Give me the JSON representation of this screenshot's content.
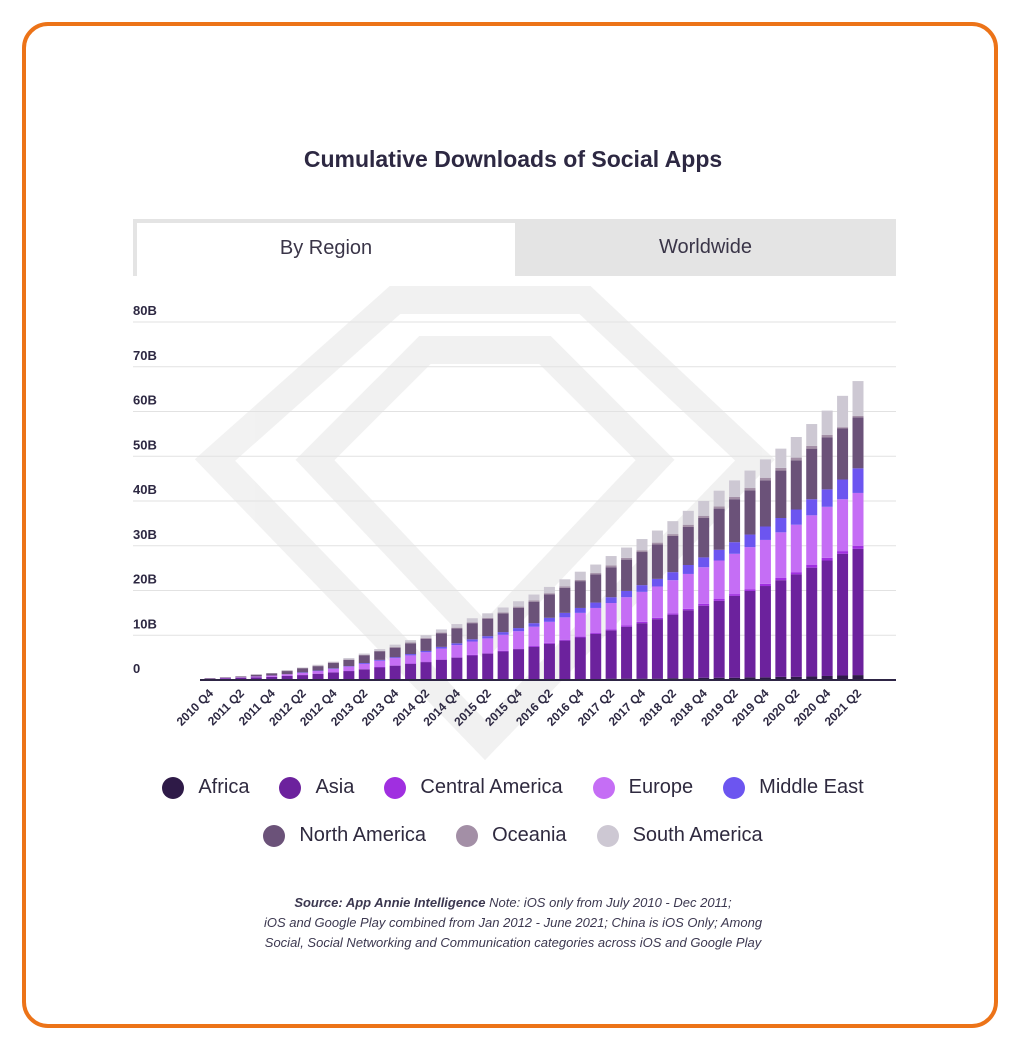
{
  "page": {
    "title": "Cumulative Downloads of Social Apps",
    "tabs": [
      {
        "label": "By Region",
        "active": true
      },
      {
        "label": "Worldwide",
        "active": false
      }
    ],
    "source_label": "Source: App Annie Intelligence",
    "source_note_lines": [
      "Note: iOS only from July 2010 - Dec 2011;",
      "iOS and Google Play combined from Jan 2012 - June 2021; China is iOS Only; Among",
      "Social, Social Networking and Communication categories across iOS and Google Play"
    ]
  },
  "chart_data": {
    "type": "bar",
    "stacked": true,
    "title": "Cumulative Downloads of Social Apps",
    "xlabel": "",
    "ylabel": "",
    "ylim": [
      0,
      80
    ],
    "yticks": [
      0,
      10,
      20,
      30,
      40,
      50,
      60,
      70,
      80
    ],
    "ytick_labels": [
      "0",
      "10B",
      "20B",
      "30B",
      "40B",
      "50B",
      "60B",
      "70B",
      "80B"
    ],
    "categories": [
      "2010 Q4",
      "2011 Q1",
      "2011 Q2",
      "2011 Q3",
      "2011 Q4",
      "2012 Q1",
      "2012 Q2",
      "2012 Q3",
      "2012 Q4",
      "2013 Q1",
      "2013 Q2",
      "2013 Q3",
      "2013 Q4",
      "2014 Q1",
      "2014 Q2",
      "2014 Q3",
      "2014 Q4",
      "2015 Q1",
      "2015 Q2",
      "2015 Q3",
      "2015 Q4",
      "2016 Q1",
      "2016 Q2",
      "2016 Q3",
      "2016 Q4",
      "2017 Q1",
      "2017 Q2",
      "2017 Q3",
      "2017 Q4",
      "2018 Q1",
      "2018 Q2",
      "2018 Q3",
      "2018 Q4",
      "2019 Q1",
      "2019 Q2",
      "2019 Q3",
      "2019 Q4",
      "2020 Q1",
      "2020 Q2",
      "2020 Q3",
      "2020 Q4",
      "2021 Q1",
      "2021 Q2"
    ],
    "xtick_labels": [
      "2010 Q4",
      "2011 Q2",
      "2011 Q4",
      "2012 Q2",
      "2012 Q4",
      "2013 Q2",
      "2013 Q4",
      "2014 Q2",
      "2014 Q4",
      "2015 Q2",
      "2015 Q4",
      "2016 Q2",
      "2016 Q4",
      "2017 Q2",
      "2017 Q4",
      "2018 Q2",
      "2018 Q4",
      "2019 Q2",
      "2019 Q4",
      "2020 Q2",
      "2020 Q4",
      "2021 Q2"
    ],
    "series": [
      {
        "name": "Africa",
        "color": "#2e1a47",
        "values": [
          0,
          0,
          0,
          0,
          0,
          0,
          0,
          0,
          0,
          0,
          0,
          0,
          0,
          0,
          0,
          0,
          0.1,
          0.1,
          0.1,
          0.1,
          0.1,
          0.1,
          0.2,
          0.2,
          0.2,
          0.2,
          0.3,
          0.3,
          0.3,
          0.3,
          0.4,
          0.4,
          0.5,
          0.5,
          0.5,
          0.6,
          0.6,
          0.7,
          0.7,
          0.8,
          0.9,
          1.0,
          1.1
        ]
      },
      {
        "name": "Asia",
        "color": "#6c229d",
        "values": [
          0.3,
          0.4,
          0.5,
          0.6,
          0.7,
          0.9,
          1.1,
          1.4,
          1.7,
          2.0,
          2.4,
          2.8,
          3.2,
          3.6,
          4.0,
          4.5,
          4.9,
          5.4,
          5.8,
          6.3,
          6.8,
          7.3,
          7.9,
          8.6,
          9.3,
          10.1,
          10.8,
          11.6,
          12.4,
          13.3,
          14.2,
          15.2,
          16.1,
          17.2,
          18.3,
          19.3,
          20.4,
          21.6,
          22.9,
          24.3,
          25.8,
          27.2,
          28.2
        ]
      },
      {
        "name": "Central America",
        "color": "#a02fe0",
        "values": [
          0,
          0,
          0,
          0,
          0,
          0,
          0,
          0,
          0,
          0,
          0,
          0.1,
          0.1,
          0.1,
          0.1,
          0.1,
          0.1,
          0.1,
          0.1,
          0.1,
          0.1,
          0.2,
          0.2,
          0.2,
          0.2,
          0.2,
          0.2,
          0.3,
          0.3,
          0.3,
          0.3,
          0.3,
          0.4,
          0.4,
          0.4,
          0.4,
          0.5,
          0.5,
          0.5,
          0.6,
          0.6,
          0.6,
          0.7
        ]
      },
      {
        "name": "Europe",
        "color": "#c56ef5",
        "values": [
          0,
          0.1,
          0.1,
          0.2,
          0.3,
          0.4,
          0.5,
          0.6,
          0.8,
          1.0,
          1.2,
          1.4,
          1.6,
          1.8,
          2.1,
          2.4,
          2.7,
          3.0,
          3.3,
          3.6,
          3.9,
          4.3,
          4.7,
          5.0,
          5.3,
          5.6,
          5.9,
          6.3,
          6.7,
          7.0,
          7.4,
          7.8,
          8.2,
          8.6,
          9.0,
          9.4,
          9.8,
          10.2,
          10.6,
          11.1,
          11.4,
          11.6,
          11.8
        ]
      },
      {
        "name": "Middle East",
        "color": "#6c55f0",
        "values": [
          0,
          0,
          0,
          0,
          0,
          0,
          0.1,
          0.1,
          0.1,
          0.1,
          0.2,
          0.2,
          0.2,
          0.3,
          0.3,
          0.4,
          0.4,
          0.5,
          0.5,
          0.6,
          0.7,
          0.8,
          0.9,
          1.0,
          1.1,
          1.2,
          1.3,
          1.4,
          1.5,
          1.7,
          1.8,
          2.0,
          2.2,
          2.4,
          2.6,
          2.8,
          3.0,
          3.2,
          3.4,
          3.6,
          3.9,
          4.4,
          5.5
        ]
      },
      {
        "name": "North America",
        "color": "#6b5279",
        "values": [
          0.1,
          0.1,
          0.2,
          0.4,
          0.5,
          0.7,
          0.9,
          1.0,
          1.2,
          1.4,
          1.7,
          1.9,
          2.1,
          2.4,
          2.7,
          3.0,
          3.3,
          3.6,
          3.9,
          4.2,
          4.5,
          4.8,
          5.2,
          5.6,
          6.0,
          6.3,
          6.7,
          7.0,
          7.4,
          7.7,
          8.1,
          8.5,
          8.8,
          9.2,
          9.6,
          9.9,
          10.3,
          10.6,
          11.0,
          11.3,
          11.6,
          11.4,
          11.4
        ]
      },
      {
        "name": "Oceania",
        "color": "#a38fa6",
        "values": [
          0,
          0,
          0,
          0,
          0,
          0.1,
          0.1,
          0.1,
          0.1,
          0.1,
          0.1,
          0.1,
          0.2,
          0.2,
          0.2,
          0.2,
          0.2,
          0.2,
          0.2,
          0.2,
          0.3,
          0.3,
          0.3,
          0.3,
          0.3,
          0.3,
          0.4,
          0.4,
          0.4,
          0.4,
          0.4,
          0.5,
          0.5,
          0.5,
          0.5,
          0.5,
          0.6,
          0.6,
          0.6,
          0.6,
          0.6,
          0.3,
          0.3
        ]
      },
      {
        "name": "South America",
        "color": "#cdc8d3",
        "values": [
          0,
          0,
          0,
          0,
          0,
          0.1,
          0.1,
          0.2,
          0.2,
          0.3,
          0.3,
          0.4,
          0.5,
          0.5,
          0.6,
          0.7,
          0.8,
          0.9,
          1.0,
          1.1,
          1.2,
          1.3,
          1.4,
          1.6,
          1.8,
          1.9,
          2.1,
          2.3,
          2.5,
          2.7,
          2.9,
          3.1,
          3.3,
          3.5,
          3.7,
          3.9,
          4.1,
          4.3,
          4.6,
          4.9,
          5.4,
          7.0,
          7.8
        ]
      }
    ],
    "legend_position": "bottom",
    "grid": true
  }
}
